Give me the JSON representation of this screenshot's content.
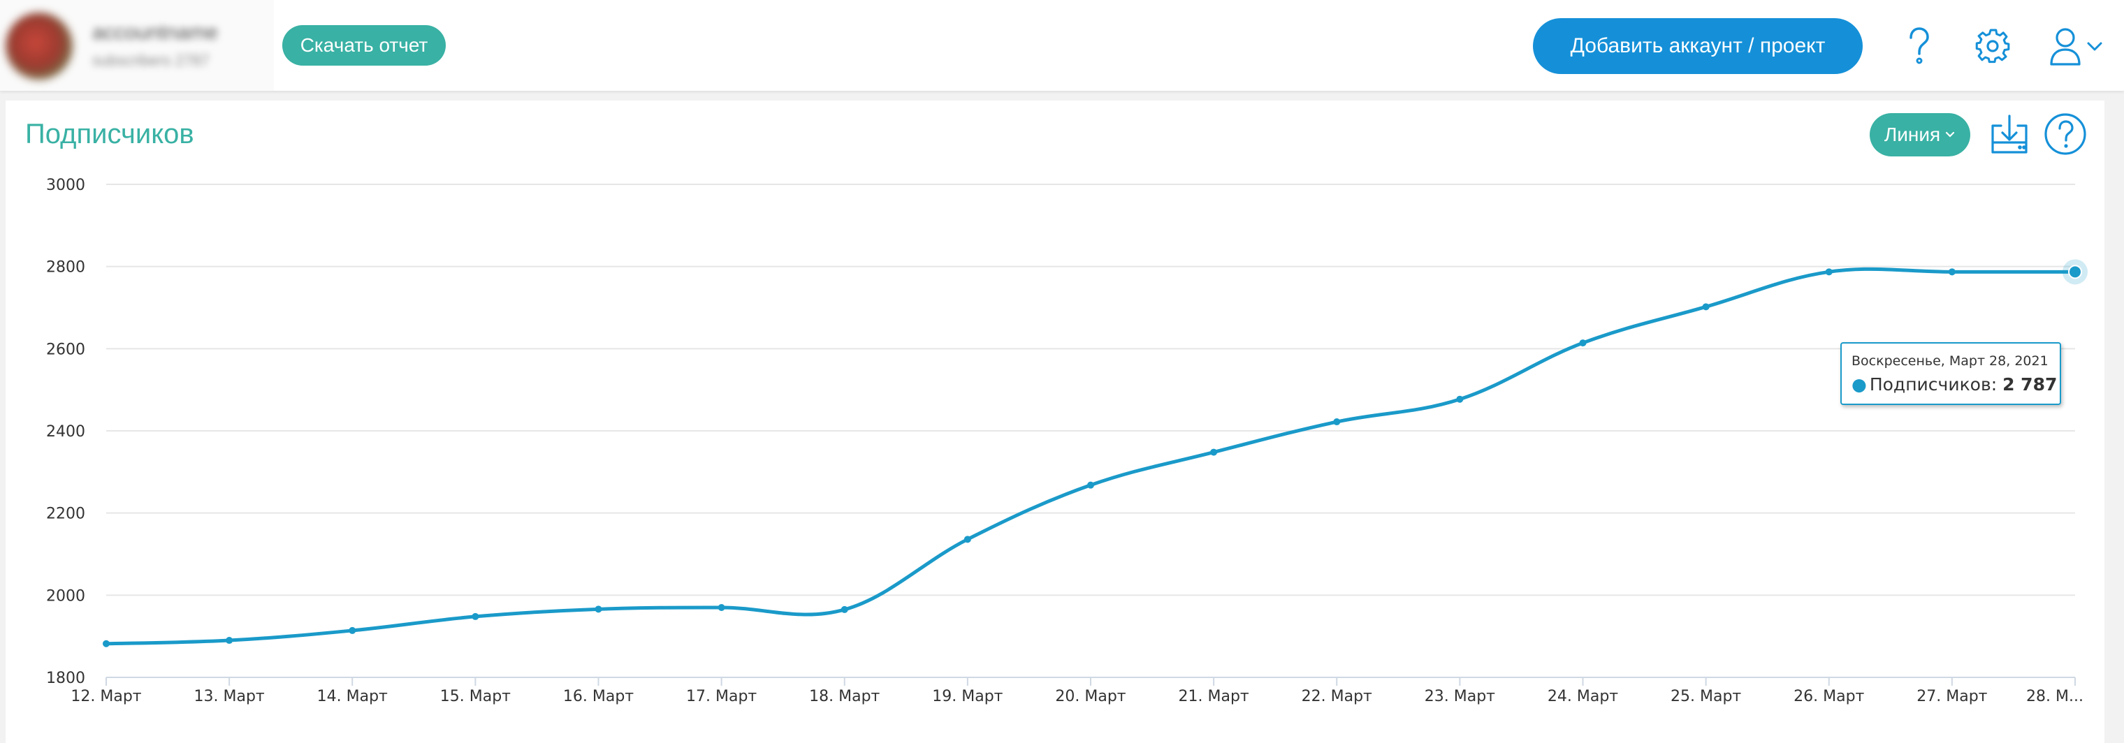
{
  "header": {
    "account_name": "accountname",
    "account_sub": "subscribers 2787",
    "download_report_label": "Скачать отчет",
    "add_account_label": "Добавить аккаунт / проект"
  },
  "card": {
    "title": "Подписчиков",
    "chart_type_label": "Линия"
  },
  "tooltip": {
    "date": "Воскресенье, Март 28, 2021",
    "series_label": "Подписчиков:",
    "value": "2 787"
  },
  "colors": {
    "accent": "#39b1a4",
    "primary": "#1590d8",
    "series": "#1a9ac9"
  },
  "icons": [
    "help-icon",
    "gear-icon",
    "user-icon",
    "chevron-down-icon",
    "download-icon",
    "circle-help-icon"
  ],
  "chart_data": {
    "type": "line",
    "title": "Подписчиков",
    "categories": [
      "12. Март",
      "13. Март",
      "14. Март",
      "15. Март",
      "16. Март",
      "17. Март",
      "18. Март",
      "19. Март",
      "20. Март",
      "21. Март",
      "22. Март",
      "23. Март",
      "24. Март",
      "25. Март",
      "26. Март",
      "27. Март",
      "28. М..."
    ],
    "series": [
      {
        "name": "Подписчиков",
        "values": [
          1882,
          1890,
          1914,
          1948,
          1966,
          1970,
          1965,
          2136,
          2268,
          2348,
          2422,
          2477,
          2614,
          2702,
          2787,
          2787,
          2787
        ]
      }
    ],
    "yticks": [
      1800,
      2000,
      2200,
      2400,
      2600,
      2800,
      3000
    ],
    "ylim": [
      1800,
      3000
    ],
    "grid": true,
    "legend": "none"
  }
}
